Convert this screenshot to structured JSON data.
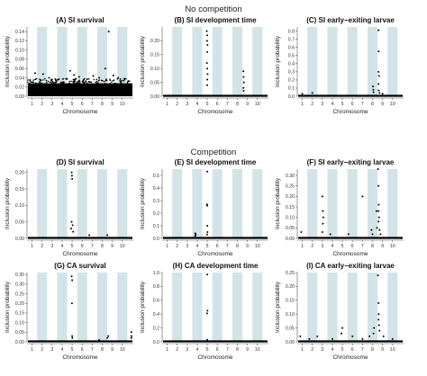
{
  "section_titles": {
    "top": "No competition",
    "middle": "Competition"
  },
  "x_label": "Chromosome",
  "y_label": "Inclusion probability",
  "chart_data": [
    {
      "type": "scatter",
      "title": "(A) SI survival",
      "ylabel": "Inclusion probability",
      "xlabel": "Chromosome",
      "ylim": [
        0,
        0.15
      ],
      "yticks": [
        "0.00",
        "0.02",
        "0.04",
        "0.06",
        "0.08",
        "0.10",
        "0.12",
        "0.14"
      ],
      "xticks": [
        "1",
        "2",
        "3",
        "4",
        "5",
        "6",
        "7",
        "8",
        "9",
        "10"
      ],
      "baseline": 0.01,
      "dense": true,
      "points": [
        [
          0.3,
          0.035
        ],
        [
          0.8,
          0.05
        ],
        [
          1.6,
          0.048
        ],
        [
          2.2,
          0.04
        ],
        [
          3.1,
          0.036
        ],
        [
          3.9,
          0.038
        ],
        [
          4.3,
          0.055
        ],
        [
          4.7,
          0.046
        ],
        [
          5.2,
          0.042
        ],
        [
          6.0,
          0.037
        ],
        [
          6.6,
          0.044
        ],
        [
          7.2,
          0.04
        ],
        [
          7.8,
          0.06
        ],
        [
          8.15,
          0.14
        ],
        [
          8.6,
          0.045
        ],
        [
          9.1,
          0.04
        ],
        [
          9.7,
          0.038
        ],
        [
          2.6,
          0.03
        ],
        [
          5.6,
          0.033
        ]
      ]
    },
    {
      "type": "scatter",
      "title": "(B) SI development time",
      "ylabel": "Inclusion probability",
      "xlabel": "Chromosome",
      "ylim": [
        0,
        0.25
      ],
      "yticks": [
        "0.00",
        "0.05",
        "0.10",
        "0.15",
        "0.20"
      ],
      "xticks": [
        "1",
        "2",
        "3",
        "4",
        "5",
        "6",
        "7",
        "8",
        "9",
        "10"
      ],
      "baseline": 0,
      "points": [
        [
          4.45,
          0.235
        ],
        [
          4.5,
          0.22
        ],
        [
          4.48,
          0.2
        ],
        [
          4.52,
          0.185
        ],
        [
          4.5,
          0.16
        ],
        [
          4.47,
          0.12
        ],
        [
          4.5,
          0.1
        ],
        [
          4.53,
          0.08
        ],
        [
          4.5,
          0.06
        ],
        [
          4.49,
          0.04
        ],
        [
          8.1,
          0.09
        ],
        [
          8.12,
          0.07
        ],
        [
          8.15,
          0.05
        ],
        [
          8.1,
          0.03
        ],
        [
          8.13,
          0.02
        ]
      ]
    },
    {
      "type": "scatter",
      "title": "(C) SI early−exiting larvae",
      "ylabel": "Inclusion probability",
      "xlabel": "Chromosome",
      "ylim": [
        0,
        0.85
      ],
      "yticks": [
        "0.0",
        "0.1",
        "0.2",
        "0.3",
        "0.4",
        "0.5",
        "0.6",
        "0.7",
        "0.8"
      ],
      "xticks": [
        "1",
        "2",
        "3",
        "4",
        "5",
        "6",
        "7",
        "8",
        "9",
        "10"
      ],
      "baseline": 0,
      "points": [
        [
          0.5,
          0.03
        ],
        [
          1.5,
          0.04
        ],
        [
          7.55,
          0.12
        ],
        [
          7.6,
          0.05
        ],
        [
          7.58,
          0.08
        ],
        [
          8.1,
          0.81
        ],
        [
          8.12,
          0.55
        ],
        [
          8.1,
          0.3
        ],
        [
          8.15,
          0.25
        ],
        [
          8.1,
          0.15
        ],
        [
          8.12,
          0.07
        ],
        [
          8.2,
          0.04
        ],
        [
          8.5,
          0.03
        ]
      ]
    },
    {
      "type": "scatter",
      "title": "(D) SI survival",
      "ylabel": "Inclusion probability",
      "xlabel": "Chromosome",
      "ylim": [
        0,
        0.21
      ],
      "yticks": [
        "0.00",
        "0.05",
        "0.10",
        "0.15",
        "0.20"
      ],
      "xticks": [
        "1",
        "2",
        "3",
        "4",
        "5",
        "6",
        "7",
        "8",
        "9",
        "10"
      ],
      "baseline": 0,
      "points": [
        [
          4.45,
          0.2
        ],
        [
          4.48,
          0.19
        ],
        [
          4.5,
          0.18
        ],
        [
          4.45,
          0.05
        ],
        [
          4.55,
          0.04
        ],
        [
          4.4,
          0.03
        ],
        [
          4.6,
          0.02
        ],
        [
          6.2,
          0.01
        ],
        [
          8.0,
          0.01
        ]
      ]
    },
    {
      "type": "scatter",
      "title": "(E) SI development time",
      "ylabel": "Inclusion probability",
      "xlabel": "Chromosome",
      "ylim": [
        0,
        0.55
      ],
      "yticks": [
        "0.0",
        "0.1",
        "0.2",
        "0.3",
        "0.4",
        "0.5"
      ],
      "xticks": [
        "1",
        "2",
        "3",
        "4",
        "5",
        "6",
        "7",
        "8",
        "9",
        "10"
      ],
      "baseline": 0,
      "points": [
        [
          4.5,
          0.53
        ],
        [
          4.47,
          0.27
        ],
        [
          4.5,
          0.26
        ],
        [
          4.5,
          0.1
        ],
        [
          4.52,
          0.05
        ],
        [
          4.48,
          0.03
        ],
        [
          3.3,
          0.04
        ],
        [
          3.35,
          0.03
        ],
        [
          3.3,
          0.02
        ]
      ]
    },
    {
      "type": "scatter",
      "title": "(F) SI early−exiting larvae",
      "ylabel": "Inclusion probability",
      "xlabel": "Chromosome",
      "ylim": [
        0,
        0.33
      ],
      "yticks": [
        "0.00",
        "0.05",
        "0.10",
        "0.15",
        "0.20",
        "0.25",
        "0.30"
      ],
      "xticks": [
        "1",
        "2",
        "3",
        "4",
        "5",
        "6",
        "7",
        "8",
        "9",
        "10"
      ],
      "baseline": 0,
      "points": [
        [
          0.4,
          0.03
        ],
        [
          2.5,
          0.2
        ],
        [
          2.55,
          0.13
        ],
        [
          2.6,
          0.1
        ],
        [
          2.55,
          0.07
        ],
        [
          2.5,
          0.03
        ],
        [
          3.3,
          0.02
        ],
        [
          5.1,
          0.02
        ],
        [
          6.5,
          0.2
        ],
        [
          7.4,
          0.04
        ],
        [
          7.5,
          0.02
        ],
        [
          8.05,
          0.33
        ],
        [
          8.1,
          0.25
        ],
        [
          8.12,
          0.16
        ],
        [
          8.1,
          0.13
        ],
        [
          8.15,
          0.1
        ],
        [
          8.1,
          0.08
        ],
        [
          7.9,
          0.13
        ],
        [
          7.95,
          0.05
        ],
        [
          8.2,
          0.04
        ],
        [
          8.3,
          0.02
        ]
      ]
    },
    {
      "type": "scatter",
      "title": "(G) CA survival",
      "ylabel": "Inclusion probability",
      "xlabel": "Chromosome",
      "ylim": [
        0,
        0.36
      ],
      "yticks": [
        "0.00",
        "0.05",
        "0.10",
        "0.15",
        "0.20",
        "0.25",
        "0.30",
        "0.35"
      ],
      "xticks": [
        "1",
        "2",
        "3",
        "4",
        "5",
        "6",
        "7",
        "8",
        "9",
        "10"
      ],
      "baseline": 0,
      "points": [
        [
          4.45,
          0.34
        ],
        [
          4.5,
          0.32
        ],
        [
          4.48,
          0.2
        ],
        [
          4.5,
          0.03
        ],
        [
          4.52,
          0.02
        ],
        [
          7.2,
          0.01
        ],
        [
          8.0,
          0.02
        ],
        [
          8.1,
          0.03
        ],
        [
          10.4,
          0.05
        ],
        [
          10.42,
          0.03
        ],
        [
          10.4,
          0.02
        ]
      ]
    },
    {
      "type": "scatter",
      "title": "(H) CA development time",
      "ylabel": "Inclusion probability",
      "xlabel": "Chromosome",
      "ylim": [
        0,
        1.0
      ],
      "yticks": [
        "0.0",
        "0.2",
        "0.4",
        "0.6",
        "0.8",
        "1.0"
      ],
      "xticks": [
        "1",
        "2",
        "3",
        "4",
        "5",
        "6",
        "7",
        "8",
        "9",
        "10"
      ],
      "baseline": 0,
      "points": [
        [
          4.5,
          0.97
        ],
        [
          4.52,
          0.45
        ],
        [
          4.48,
          0.41
        ],
        [
          4.5,
          0.03
        ]
      ]
    },
    {
      "type": "scatter",
      "title": "(I) CA early−exiting larvae",
      "ylabel": "Inclusion probability",
      "xlabel": "Chromosome",
      "ylim": [
        0,
        0.25
      ],
      "yticks": [
        "0.00",
        "0.05",
        "0.10",
        "0.15",
        "0.20",
        "0.25"
      ],
      "xticks": [
        "1",
        "2",
        "3",
        "4",
        "5",
        "6",
        "7",
        "8",
        "9",
        "10"
      ],
      "baseline": 0,
      "points": [
        [
          0.3,
          0.02
        ],
        [
          1.2,
          0.01
        ],
        [
          2.0,
          0.02
        ],
        [
          3.5,
          0.01
        ],
        [
          4.4,
          0.03
        ],
        [
          4.5,
          0.05
        ],
        [
          5.5,
          0.02
        ],
        [
          6.5,
          0.01
        ],
        [
          7.2,
          0.02
        ],
        [
          7.6,
          0.03
        ],
        [
          7.65,
          0.05
        ],
        [
          8.05,
          0.24
        ],
        [
          8.1,
          0.14
        ],
        [
          8.12,
          0.1
        ],
        [
          8.1,
          0.08
        ],
        [
          8.15,
          0.06
        ],
        [
          8.2,
          0.04
        ],
        [
          8.6,
          0.02
        ],
        [
          9.5,
          0.01
        ]
      ]
    }
  ]
}
